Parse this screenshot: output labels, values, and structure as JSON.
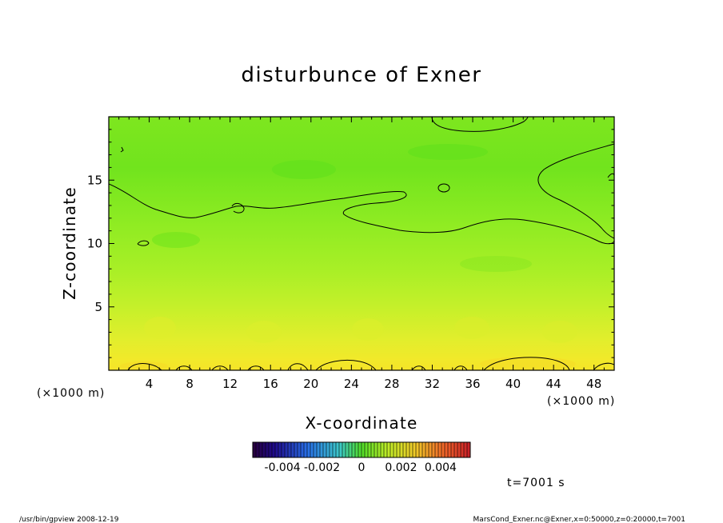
{
  "chart_data": {
    "type": "heatmap",
    "title": "disturbunce of Exner",
    "xlabel": "X-coordinate",
    "ylabel": "Z-coordinate",
    "x_unit_left": "(×1000 m)",
    "x_unit_right": "(×1000 m)",
    "xlim": [
      0,
      50
    ],
    "ylim": [
      0,
      20
    ],
    "x_ticks": [
      4,
      8,
      12,
      16,
      20,
      24,
      28,
      32,
      36,
      40,
      44,
      48
    ],
    "x_tick_labels": [
      "4",
      "8",
      "12",
      "16",
      "20",
      "24",
      "28",
      "32",
      "36",
      "40",
      "44",
      "48"
    ],
    "y_ticks": [
      5,
      10,
      15
    ],
    "y_tick_labels": [
      "5",
      "10",
      "15"
    ],
    "colorbar": {
      "range": [
        -0.0055,
        0.0055
      ],
      "tick_values": [
        -0.004,
        -0.002,
        0,
        0.002,
        0.004
      ],
      "tick_labels": [
        "-0.004",
        "-0.002",
        "0",
        "0.002",
        "0.004"
      ]
    },
    "field_profile": [
      {
        "z": 0.0,
        "value": 0.0016
      },
      {
        "z": 1.0,
        "value": 0.0012
      },
      {
        "z": 3.0,
        "value": 0.0009
      },
      {
        "z": 6.0,
        "value": 0.0006
      },
      {
        "z": 10.0,
        "value": 0.0003
      },
      {
        "z": 14.0,
        "value": 0.0001
      },
      {
        "z": 17.0,
        "value": 0.0
      },
      {
        "z": 20.0,
        "value": 0.0001
      }
    ],
    "grid": false
  },
  "annotations": {
    "time_label": "t=7001 s",
    "footer_left": "/usr/bin/gpview  2008-12-19",
    "footer_right": "MarsCond_Exner.nc@Exner,x=0:50000,z=0:20000,t=7001"
  }
}
